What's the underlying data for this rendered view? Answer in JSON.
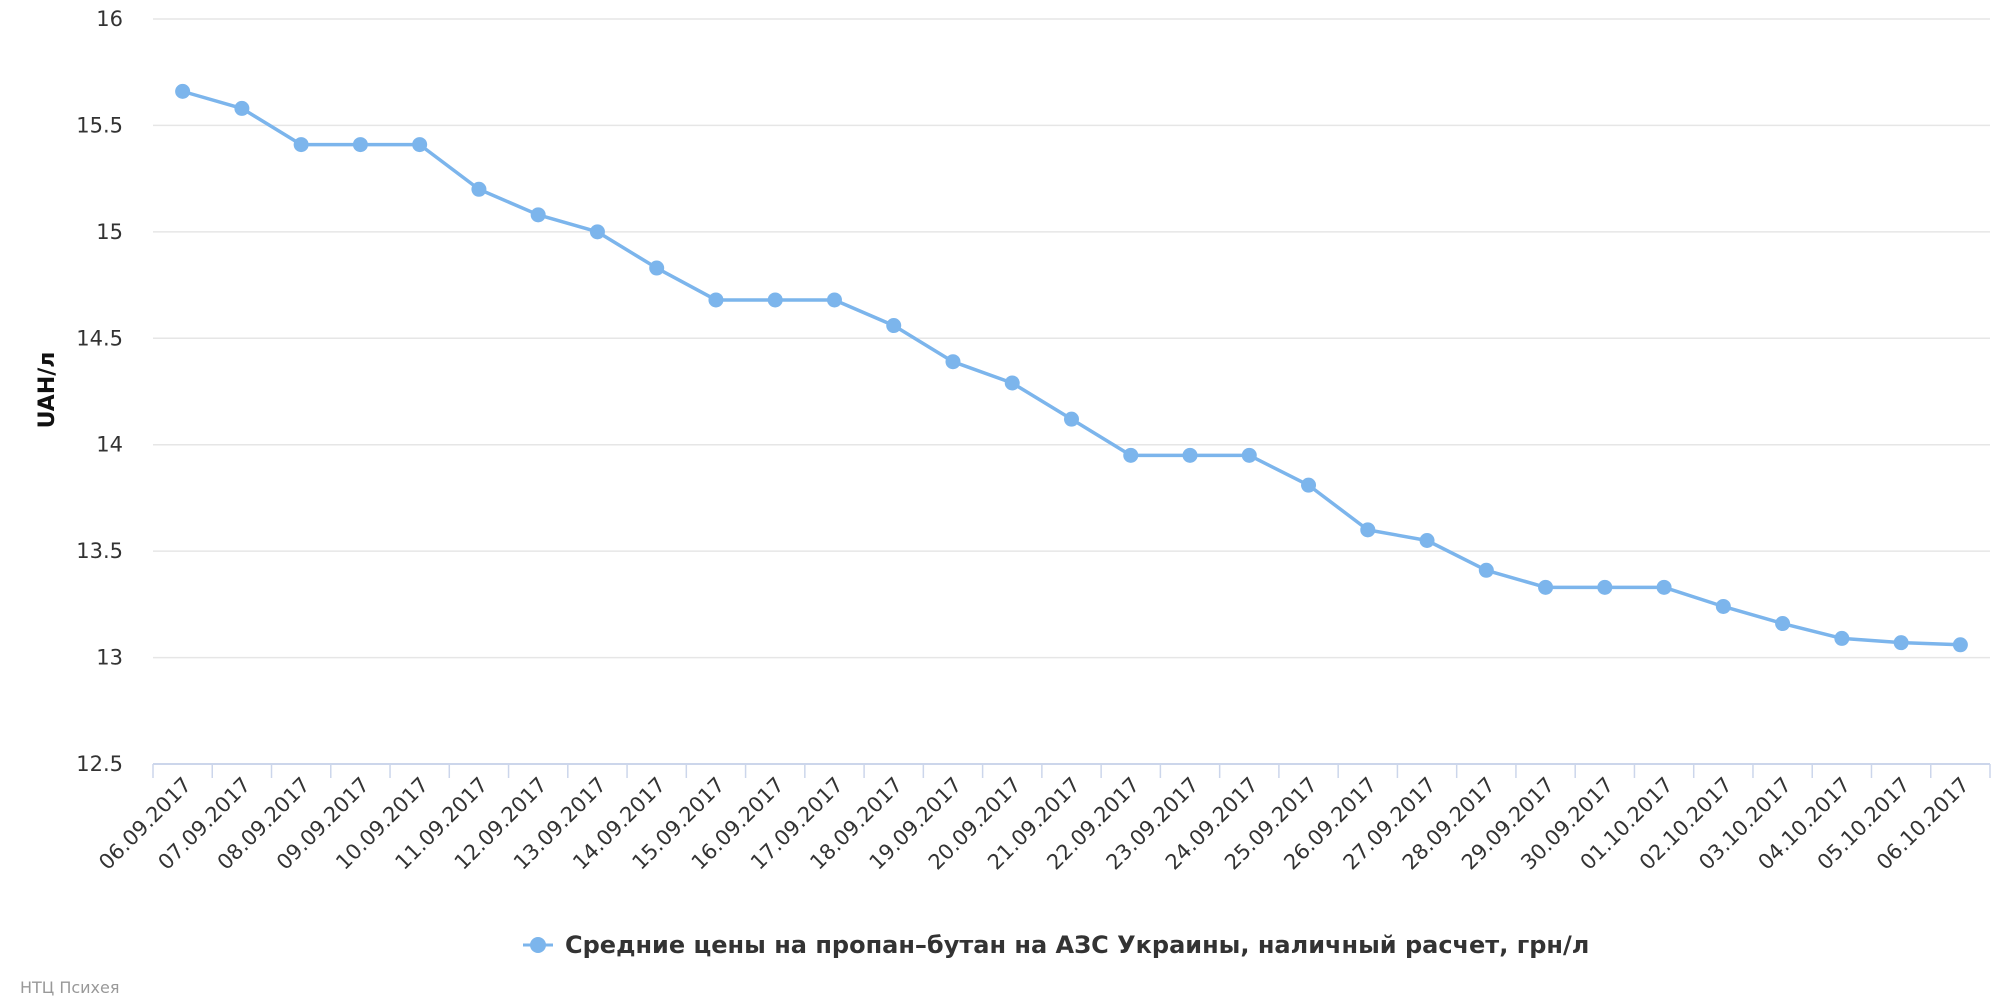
{
  "chart_data": {
    "type": "line",
    "title": "",
    "xlabel": "",
    "ylabel": "UAH/л",
    "ylim": [
      12.5,
      16
    ],
    "yticks": [
      "12.5",
      "13",
      "13.5",
      "14",
      "14.5",
      "15",
      "15.5",
      "16"
    ],
    "grid": true,
    "legend_position": "bottom-center",
    "categories": [
      "06.09.2017",
      "07.09.2017",
      "08.09.2017",
      "09.09.2017",
      "10.09.2017",
      "11.09.2017",
      "12.09.2017",
      "13.09.2017",
      "14.09.2017",
      "15.09.2017",
      "16.09.2017",
      "17.09.2017",
      "18.09.2017",
      "19.09.2017",
      "20.09.2017",
      "21.09.2017",
      "22.09.2017",
      "23.09.2017",
      "24.09.2017",
      "25.09.2017",
      "26.09.2017",
      "27.09.2017",
      "28.09.2017",
      "29.09.2017",
      "30.09.2017",
      "01.10.2017",
      "02.10.2017",
      "03.10.2017",
      "04.10.2017",
      "05.10.2017",
      "06.10.2017"
    ],
    "series": [
      {
        "name": "Средние цены на пропан–бутан на АЗС Украины, наличный расчет, грн/л",
        "color": "#7cb5ec",
        "values": [
          15.66,
          15.58,
          15.41,
          15.41,
          15.41,
          15.2,
          15.08,
          15.0,
          14.83,
          14.68,
          14.68,
          14.68,
          14.56,
          14.39,
          14.29,
          14.12,
          13.95,
          13.95,
          13.95,
          13.81,
          13.6,
          13.55,
          13.41,
          13.33,
          13.33,
          13.33,
          13.24,
          13.16,
          13.09,
          13.07,
          13.06
        ]
      }
    ]
  },
  "credits": "НТЦ Психея",
  "colors": {
    "grid": "#e6e6e6",
    "axis": "#ccd6eb",
    "series": "#7cb5ec"
  }
}
